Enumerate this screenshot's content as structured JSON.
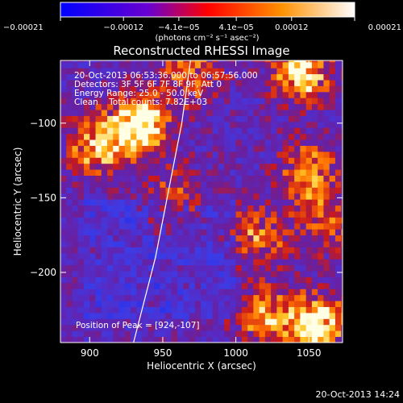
{
  "chart_data": {
    "type": "heatmap",
    "title": "Reconstructed RHESSI Image",
    "xlabel": "Heliocentric X (arcsec)",
    "ylabel": "Heliocentric Y (arcsec)",
    "xlim": [
      880,
      1073
    ],
    "ylim": [
      -247,
      -58
    ],
    "x_ticks": [
      900,
      950,
      1000,
      1050
    ],
    "x_tick_labels": [
      "900",
      "950",
      "1000",
      "1050"
    ],
    "y_ticks": [
      -100,
      -150,
      -200
    ],
    "y_tick_labels": [
      "−100",
      "−150",
      "−200"
    ],
    "colorbar": {
      "range": [
        -0.00021,
        0.00021
      ],
      "tick_values": [
        -0.00021,
        -0.00012,
        -4.1e-05,
        4.1e-05,
        0.00012,
        0.00021
      ],
      "tick_labels": [
        "−0.00021",
        "−0.00012",
        "−4.1e−05",
        "4.1e−05",
        "0.00012",
        "0.00021"
      ],
      "unit_label": "(photons cm⁻² s⁻¹ asec⁻²)",
      "colormap": [
        "#0000ff",
        "#6a00d0",
        "#ff0000",
        "#ff9000",
        "#ffffff"
      ]
    },
    "annotations": [
      "20-Oct-2013 06:53:36.000 to 06:57:56.000",
      "Detectors: 3F 5F 6F 7F 8F 9F, Att 0",
      "Energy Range: 25.0 - 50.0 keV",
      "Clean    Total counts: 7.82E+03"
    ],
    "peak_label": "Position of Peak = [924,-107]",
    "peak": [
      924,
      -107
    ],
    "bright_sources": [
      {
        "x": 935,
        "y": -100,
        "intensity": 1.0
      },
      {
        "x": 905,
        "y": -115,
        "intensity": 0.65
      },
      {
        "x": 1045,
        "y": -65,
        "intensity": 0.85
      },
      {
        "x": 970,
        "y": -65,
        "intensity": 0.55
      },
      {
        "x": 1055,
        "y": -235,
        "intensity": 0.9
      },
      {
        "x": 1020,
        "y": -230,
        "intensity": 0.6
      },
      {
        "x": 1050,
        "y": -130,
        "intensity": 0.55
      },
      {
        "x": 1015,
        "y": -175,
        "intensity": 0.5
      },
      {
        "x": 1060,
        "y": -165,
        "intensity": 0.45
      },
      {
        "x": 960,
        "y": -150,
        "intensity": 0.4
      }
    ],
    "limb_curve": [
      [
        930,
        -247
      ],
      [
        945,
        -190
      ],
      [
        955,
        -140
      ],
      [
        963,
        -100
      ],
      [
        969,
        -58
      ]
    ]
  },
  "timestamp": "20-Oct-2013 14:24"
}
